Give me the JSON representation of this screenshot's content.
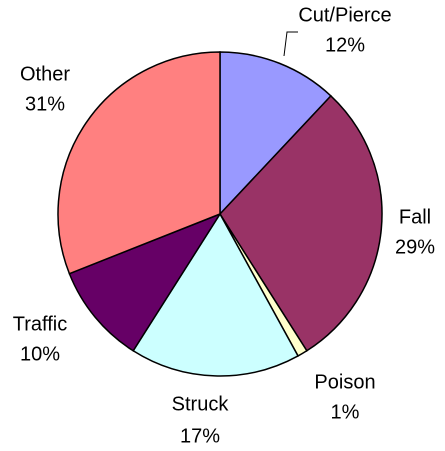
{
  "chart_data": {
    "type": "pie",
    "categories": [
      "Cut/Pierce",
      "Fall",
      "Poison",
      "Struck",
      "Traffic",
      "Other"
    ],
    "values": [
      12,
      29,
      1,
      17,
      10,
      31
    ],
    "value_labels": [
      "12%",
      "29%",
      "1%",
      "17%",
      "10%",
      "31%"
    ],
    "colors": [
      "#9999ff",
      "#993366",
      "#ffffcc",
      "#ccffff",
      "#660066",
      "#ff8080"
    ]
  }
}
